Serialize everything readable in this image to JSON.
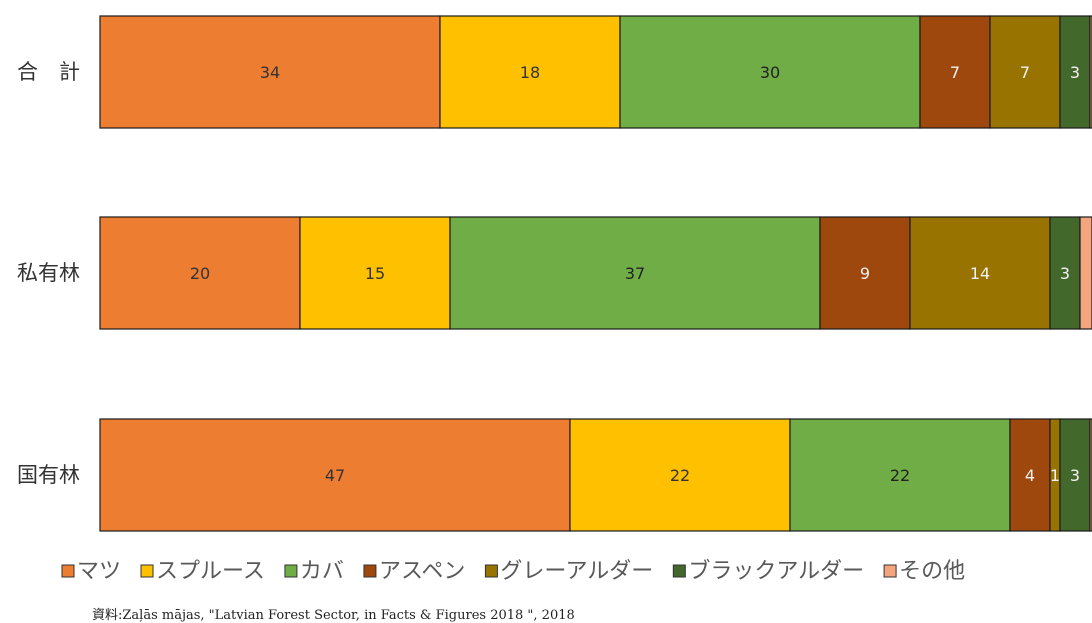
{
  "chart_data": {
    "type": "bar",
    "orientation": "horizontal",
    "stacked": true,
    "categories": [
      "合　計",
      "私有林",
      "国有林"
    ],
    "series": [
      {
        "name": "マツ",
        "color": "#ED7D31",
        "label_color": "#333333",
        "values": [
          34,
          20,
          47
        ]
      },
      {
        "name": "スプルース",
        "color": "#FFC000",
        "label_color": "#333333",
        "values": [
          18,
          15,
          22
        ]
      },
      {
        "name": "カバ",
        "color": "#70AD47",
        "label_color": "#222222",
        "values": [
          30,
          37,
          22
        ]
      },
      {
        "name": "アスペン",
        "color": "#9E480E",
        "label_color": "#F2F2F2",
        "values": [
          7,
          9,
          4
        ]
      },
      {
        "name": "グレーアルダー",
        "color": "#997300",
        "label_color": "#F2F2F2",
        "values": [
          7,
          14,
          1
        ]
      },
      {
        "name": "ブラックアルダー",
        "color": "#43682B",
        "label_color": "#F2F2F2",
        "values": [
          3,
          3,
          3
        ]
      },
      {
        "name": "その他",
        "color": "#F4A57E",
        "label_color": "#333333",
        "values": [
          1,
          2,
          1
        ]
      }
    ],
    "xlim": [
      0,
      100
    ],
    "grid": false,
    "legend": "bottom",
    "title": "",
    "xlabel": "",
    "ylabel": ""
  },
  "source_text": "資料:Zaļās mājas, \"Latvian Forest Sector, in Facts & Figures 2018 \", 2018"
}
